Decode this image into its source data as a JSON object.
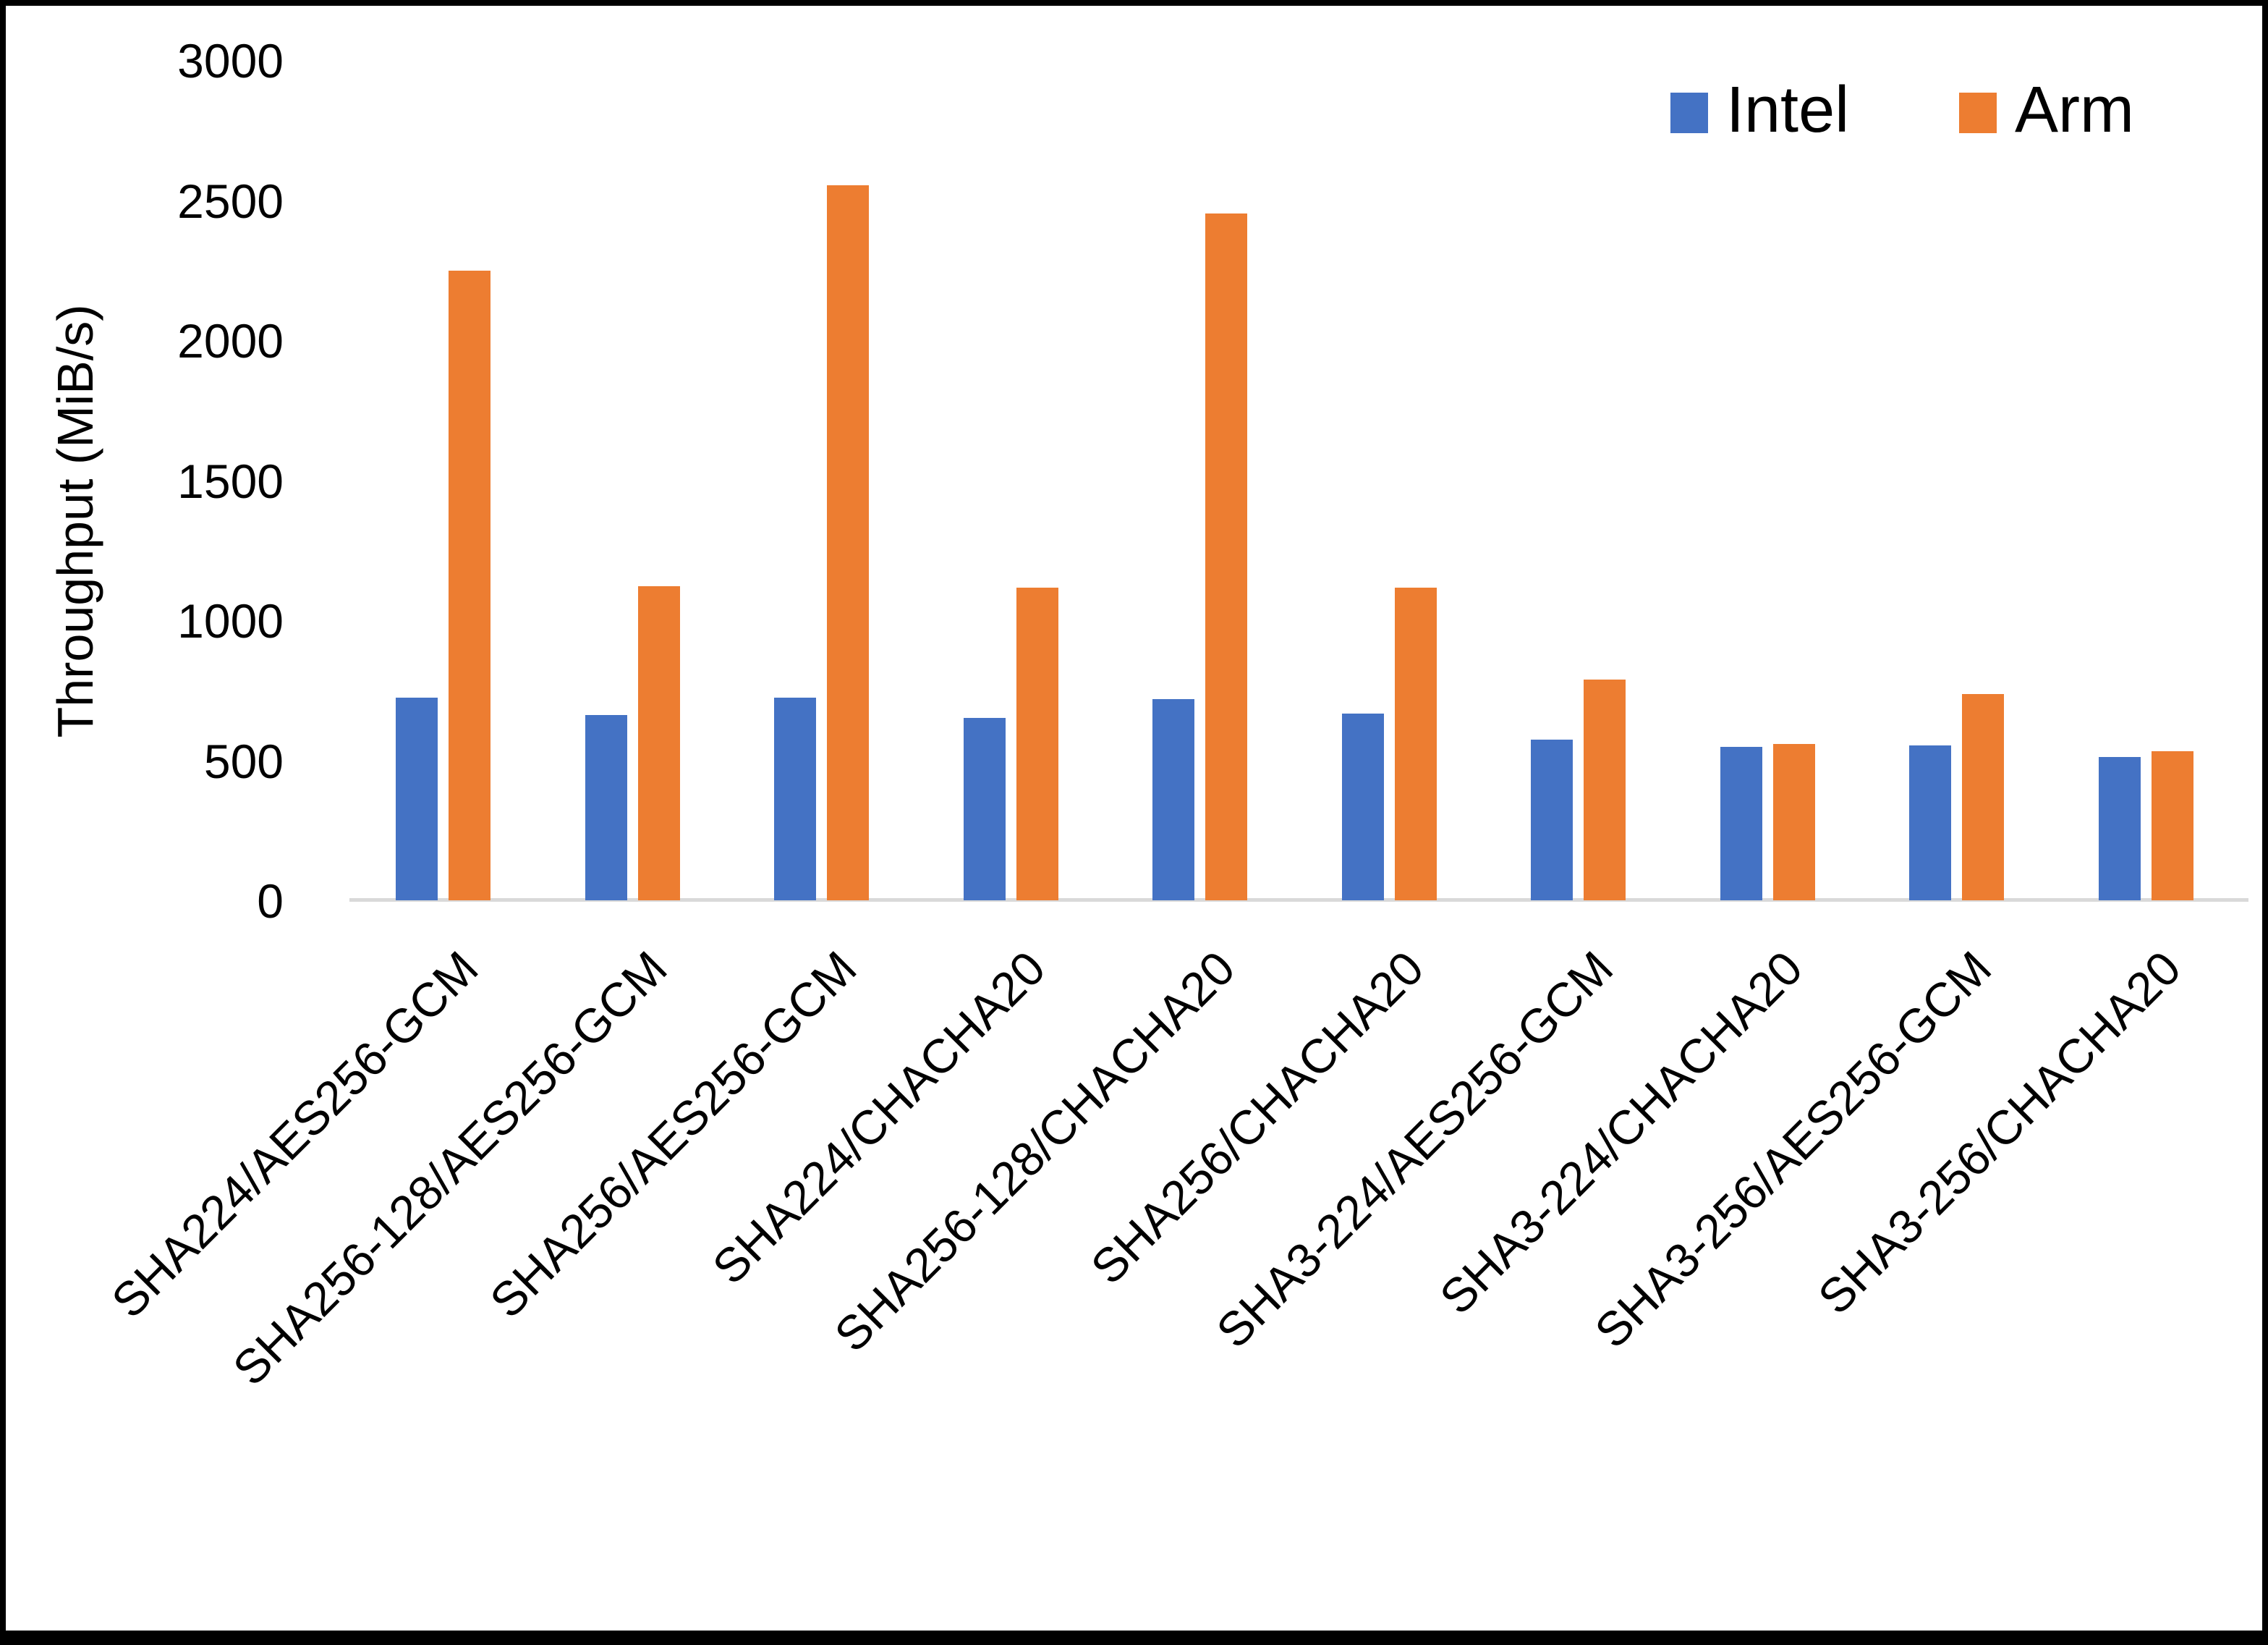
{
  "chart_data": {
    "type": "bar",
    "title": "",
    "xlabel": "",
    "ylabel": "Throughput (MiB/s)",
    "ylim": [
      0,
      3000
    ],
    "y_ticks": [
      0,
      500,
      1000,
      1500,
      2000,
      2500,
      3000
    ],
    "grid": false,
    "legend_position": "top-right",
    "bar_orientation": "vertical",
    "category_label_rotation_deg": -45,
    "categories": [
      "SHA224/AES256-GCM",
      "SHA256-128/AES256-GCM",
      "SHA256/AES256-GCM",
      "SHA224/CHACHA20",
      "SHA256-128/CHACHA20",
      "SHA256/CHACHA20",
      "SHA3-224/AES256-GCM",
      "SHA3-224/CHACHA20",
      "SHA3-256/AES256-GCM",
      "SHA3-256/CHACHA20"
    ],
    "series": [
      {
        "name": "Intel",
        "color": "#4472C4",
        "values": [
          725,
          665,
          725,
          655,
          720,
          670,
          575,
          550,
          555,
          515
        ]
      },
      {
        "name": "Arm",
        "color": "#ED7D31",
        "values": [
          2250,
          1125,
          2555,
          1120,
          2455,
          1120,
          790,
          560,
          740,
          535
        ]
      }
    ],
    "axis_line_color": "#D9D9D9",
    "frame_color": "#000000",
    "background_color": "#FFFFFF"
  }
}
